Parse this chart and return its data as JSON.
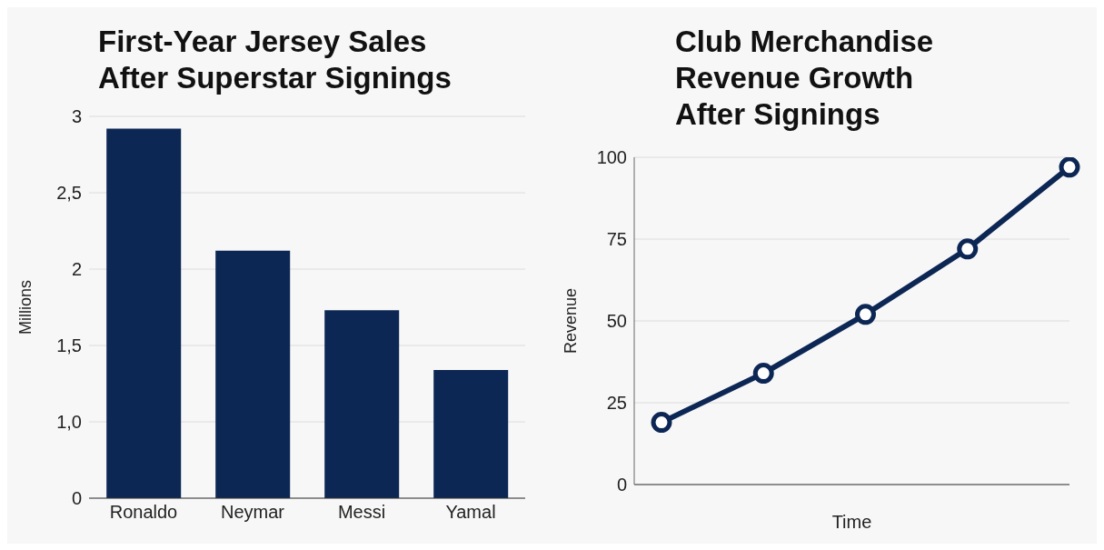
{
  "chart_data": [
    {
      "type": "bar",
      "title": "First-Year Jersey Sales\nAfter Superstar Signings",
      "ylabel": "Millions",
      "categories": [
        "Ronaldo",
        "Neymar",
        "Messi",
        "Yamal"
      ],
      "values": [
        2.92,
        2.12,
        1.73,
        1.34
      ],
      "color": "#0d2755",
      "ylim": [
        0.5,
        3
      ],
      "yticks": [
        {
          "value": 0.5,
          "label": "0"
        },
        {
          "value": 1,
          "label": "1,0"
        },
        {
          "value": 1.5,
          "label": "1,5"
        },
        {
          "value": 2,
          "label": "2"
        },
        {
          "value": 2.5,
          "label": "2,5"
        },
        {
          "value": 3,
          "label": "3"
        }
      ],
      "grid": "y"
    },
    {
      "type": "line",
      "title": "Club Merchandise\nRevenue Growth\nAfter Signings",
      "xlabel": "Time",
      "ylabel": "Revenue",
      "categories": [
        null,
        null,
        null,
        null,
        null
      ],
      "values": [
        19,
        34,
        52,
        72,
        97
      ],
      "color": "#0d2755",
      "ylim": [
        0,
        100
      ],
      "yticks": [
        0,
        25,
        50,
        75,
        100
      ],
      "grid": "y",
      "marker": "circle"
    }
  ]
}
